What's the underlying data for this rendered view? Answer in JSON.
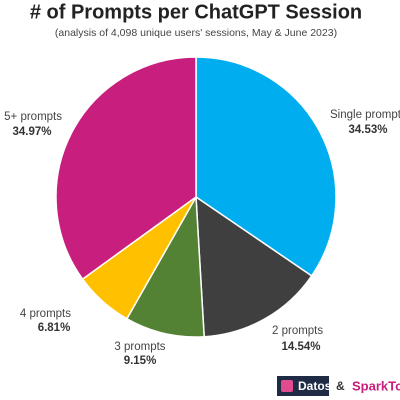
{
  "chart_data": {
    "type": "pie",
    "title": "# of Prompts per ChatGPT Session",
    "subtitle": "(analysis of 4,098 unique users' sessions, May & June 2023)",
    "categories": [
      "Single prompt",
      "2 prompts",
      "3 prompts",
      "4 prompts",
      "5+ prompts"
    ],
    "values": [
      34.53,
      14.54,
      9.15,
      6.81,
      34.97
    ],
    "value_labels": [
      "34.53%",
      "14.54%",
      "9.15%",
      "6.81%",
      "34.97%"
    ],
    "colors": [
      "#00aeef",
      "#3f3f3f",
      "#548235",
      "#ffc000",
      "#c81e7e"
    ]
  },
  "footer": {
    "brand_1": "Datos",
    "joiner": "&",
    "brand_2": "SparkToro"
  }
}
